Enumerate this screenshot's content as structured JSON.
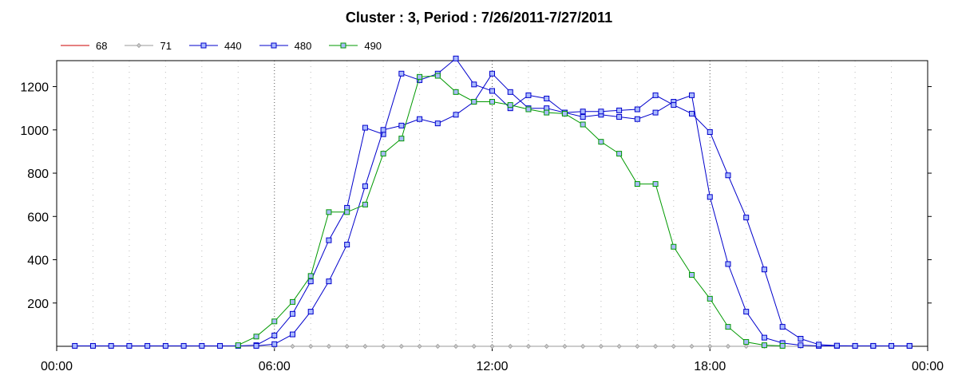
{
  "chart_data": {
    "type": "line",
    "title": "Cluster : 3, Period : 7/26/2011-7/27/2011",
    "xlabel": "",
    "ylabel": "",
    "x_ticks": [
      "00:00",
      "06:00",
      "12:00",
      "18:00",
      "00:00"
    ],
    "x_range_hours": [
      0,
      24
    ],
    "y_ticks": [
      "200",
      "400",
      "600",
      "800",
      "1000",
      "1200"
    ],
    "ylim": [
      0,
      1320
    ],
    "grid": true,
    "legend_position": "top-left",
    "series": [
      {
        "name": "68",
        "color": "#cc0000",
        "marker": "none",
        "points": []
      },
      {
        "name": "71",
        "color": "#999999",
        "marker": "diamond",
        "points": [
          [
            0.5,
            0
          ],
          [
            1.0,
            0
          ],
          [
            1.5,
            0
          ],
          [
            2.0,
            0
          ],
          [
            2.5,
            0
          ],
          [
            3.0,
            0
          ],
          [
            3.5,
            0
          ],
          [
            4.0,
            0
          ],
          [
            4.5,
            0
          ],
          [
            5.0,
            0
          ],
          [
            5.5,
            0
          ],
          [
            6.0,
            0
          ],
          [
            6.5,
            0
          ],
          [
            7.0,
            0
          ],
          [
            7.5,
            0
          ],
          [
            8.0,
            0
          ],
          [
            8.5,
            0
          ],
          [
            9.0,
            0
          ],
          [
            9.5,
            0
          ],
          [
            10.0,
            0
          ],
          [
            10.5,
            0
          ],
          [
            11.0,
            0
          ],
          [
            11.5,
            0
          ],
          [
            12.0,
            0
          ],
          [
            12.5,
            0
          ],
          [
            13.0,
            0
          ],
          [
            13.5,
            0
          ],
          [
            14.0,
            0
          ],
          [
            14.5,
            0
          ],
          [
            15.0,
            0
          ],
          [
            15.5,
            0
          ],
          [
            16.0,
            0
          ],
          [
            16.5,
            0
          ],
          [
            17.0,
            0
          ],
          [
            17.5,
            0
          ],
          [
            18.0,
            0
          ],
          [
            18.5,
            0
          ],
          [
            19.0,
            0
          ],
          [
            19.5,
            0
          ],
          [
            20.0,
            0
          ],
          [
            20.5,
            0
          ],
          [
            21.0,
            0
          ],
          [
            21.5,
            0
          ],
          [
            22.0,
            0
          ],
          [
            22.5,
            0
          ],
          [
            23.0,
            0
          ],
          [
            23.5,
            0
          ]
        ]
      },
      {
        "name": "440",
        "color": "#0000cc",
        "marker": "square",
        "points": [
          [
            0.5,
            2
          ],
          [
            1.0,
            2
          ],
          [
            1.5,
            2
          ],
          [
            2.0,
            2
          ],
          [
            2.5,
            2
          ],
          [
            3.0,
            2
          ],
          [
            3.5,
            2
          ],
          [
            4.0,
            2
          ],
          [
            4.5,
            2
          ],
          [
            5.0,
            2
          ],
          [
            5.5,
            5
          ],
          [
            6.0,
            50
          ],
          [
            6.5,
            150
          ],
          [
            7.0,
            300
          ],
          [
            7.5,
            490
          ],
          [
            8.0,
            640
          ],
          [
            8.5,
            1010
          ],
          [
            9.0,
            980
          ],
          [
            9.5,
            1260
          ],
          [
            10.0,
            1230
          ],
          [
            10.5,
            1260
          ],
          [
            11.0,
            1330
          ],
          [
            11.5,
            1210
          ],
          [
            12.0,
            1180
          ],
          [
            12.5,
            1100
          ],
          [
            13.0,
            1160
          ],
          [
            13.5,
            1145
          ],
          [
            14.0,
            1080
          ],
          [
            14.5,
            1060
          ],
          [
            15.0,
            1070
          ],
          [
            15.5,
            1060
          ],
          [
            16.0,
            1050
          ],
          [
            16.5,
            1080
          ],
          [
            17.0,
            1130
          ],
          [
            17.5,
            1160
          ],
          [
            18.0,
            690
          ],
          [
            18.5,
            380
          ],
          [
            19.0,
            160
          ],
          [
            19.5,
            40
          ],
          [
            20.0,
            15
          ],
          [
            20.5,
            5
          ],
          [
            21.0,
            2
          ],
          [
            21.5,
            2
          ],
          [
            22.0,
            2
          ],
          [
            22.5,
            2
          ],
          [
            23.0,
            2
          ],
          [
            23.5,
            2
          ]
        ]
      },
      {
        "name": "480",
        "color": "#0000cc",
        "marker": "square",
        "points": [
          [
            5.5,
            2
          ],
          [
            6.0,
            10
          ],
          [
            6.5,
            55
          ],
          [
            7.0,
            160
          ],
          [
            7.5,
            300
          ],
          [
            8.0,
            470
          ],
          [
            8.5,
            740
          ],
          [
            9.0,
            1000
          ],
          [
            9.5,
            1020
          ],
          [
            10.0,
            1050
          ],
          [
            10.5,
            1030
          ],
          [
            11.0,
            1070
          ],
          [
            11.5,
            1130
          ],
          [
            12.0,
            1260
          ],
          [
            12.5,
            1175
          ],
          [
            13.0,
            1100
          ],
          [
            13.5,
            1100
          ],
          [
            14.0,
            1080
          ],
          [
            14.5,
            1085
          ],
          [
            15.0,
            1085
          ],
          [
            15.5,
            1090
          ],
          [
            16.0,
            1095
          ],
          [
            16.5,
            1160
          ],
          [
            17.0,
            1115
          ],
          [
            17.5,
            1075
          ],
          [
            18.0,
            990
          ],
          [
            18.5,
            790
          ],
          [
            19.0,
            595
          ],
          [
            19.5,
            355
          ],
          [
            20.0,
            90
          ],
          [
            20.5,
            35
          ],
          [
            21.0,
            8
          ],
          [
            21.5,
            3
          ],
          [
            22.0,
            2
          ],
          [
            22.5,
            2
          ],
          [
            23.0,
            2
          ],
          [
            23.5,
            2
          ]
        ]
      },
      {
        "name": "490",
        "color": "#009900",
        "marker": "square",
        "points": [
          [
            5.0,
            5
          ],
          [
            5.5,
            45
          ],
          [
            6.0,
            115
          ],
          [
            6.5,
            205
          ],
          [
            7.0,
            325
          ],
          [
            7.5,
            620
          ],
          [
            8.0,
            620
          ],
          [
            8.5,
            655
          ],
          [
            9.0,
            890
          ],
          [
            9.5,
            960
          ],
          [
            10.0,
            1245
          ],
          [
            10.5,
            1250
          ],
          [
            11.0,
            1175
          ],
          [
            11.5,
            1130
          ],
          [
            12.0,
            1130
          ],
          [
            12.5,
            1115
          ],
          [
            13.0,
            1095
          ],
          [
            13.5,
            1080
          ],
          [
            14.0,
            1075
          ],
          [
            14.5,
            1025
          ],
          [
            15.0,
            945
          ],
          [
            15.5,
            890
          ],
          [
            16.0,
            750
          ],
          [
            16.5,
            750
          ],
          [
            17.0,
            460
          ],
          [
            17.5,
            330
          ],
          [
            18.0,
            220
          ],
          [
            18.5,
            90
          ],
          [
            19.0,
            20
          ],
          [
            19.5,
            5
          ],
          [
            20.0,
            2
          ]
        ]
      }
    ]
  }
}
